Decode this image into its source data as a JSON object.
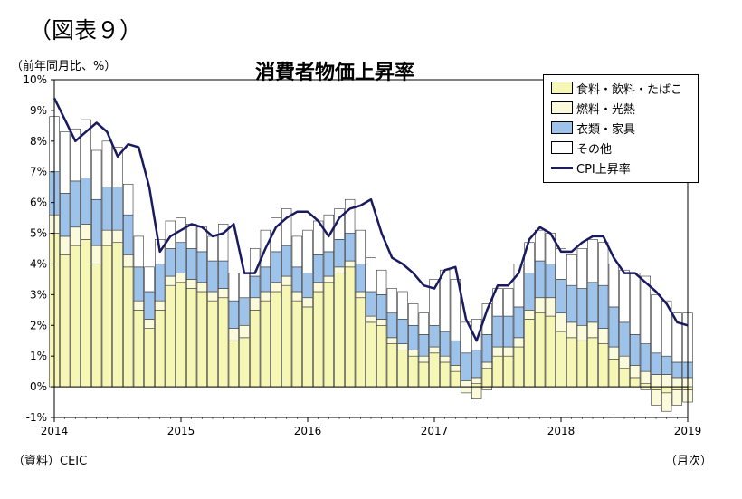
{
  "figure_label": "（図表９）",
  "unit_label": "（前年同月比、%）",
  "source_label": "（資料）CEIC",
  "x_unit_label": "（月次）",
  "colors": {
    "food": "#f7f7b5",
    "fuel": "#fbfbdc",
    "clothing": "#9ec3ea",
    "other": "#ffffff",
    "cpi": "#1a1a60"
  },
  "chart_data": {
    "type": "bar",
    "title": "消費者物価上昇率",
    "ylabel": "（前年同月比、%）",
    "xlabel": "（月次）",
    "ylim": [
      -1,
      10
    ],
    "y_ticks": [
      "10%",
      "9%",
      "8%",
      "7%",
      "6%",
      "5%",
      "4%",
      "3%",
      "2%",
      "1%",
      "0%",
      "-1%"
    ],
    "x_tick_labels": [
      "2014",
      "2015",
      "2016",
      "2017",
      "2018",
      "2019"
    ],
    "categories": [
      "2014-01",
      "2014-02",
      "2014-03",
      "2014-04",
      "2014-05",
      "2014-06",
      "2014-07",
      "2014-08",
      "2014-09",
      "2014-10",
      "2014-11",
      "2014-12",
      "2015-01",
      "2015-02",
      "2015-03",
      "2015-04",
      "2015-05",
      "2015-06",
      "2015-07",
      "2015-08",
      "2015-09",
      "2015-10",
      "2015-11",
      "2015-12",
      "2016-01",
      "2016-02",
      "2016-03",
      "2016-04",
      "2016-05",
      "2016-06",
      "2016-07",
      "2016-08",
      "2016-09",
      "2016-10",
      "2016-11",
      "2016-12",
      "2017-01",
      "2017-02",
      "2017-03",
      "2017-04",
      "2017-05",
      "2017-06",
      "2017-07",
      "2017-08",
      "2017-09",
      "2017-10",
      "2017-11",
      "2017-12",
      "2018-01",
      "2018-02",
      "2018-03",
      "2018-04",
      "2018-05",
      "2018-06",
      "2018-07",
      "2018-08",
      "2018-09",
      "2018-10",
      "2018-11",
      "2018-12",
      "2019-01"
    ],
    "legend_position": "top-right",
    "series": [
      {
        "name": "食料・飲料・たばこ",
        "key": "food",
        "kind": "bar",
        "values": [
          5.0,
          4.3,
          4.6,
          4.8,
          4.0,
          4.6,
          4.7,
          3.9,
          2.5,
          1.9,
          2.5,
          3.3,
          3.4,
          3.2,
          3.1,
          2.8,
          2.9,
          1.5,
          1.6,
          2.5,
          2.8,
          3.1,
          3.3,
          2.8,
          2.6,
          3.1,
          3.4,
          3.7,
          3.9,
          2.9,
          2.1,
          2.0,
          1.4,
          1.2,
          1.0,
          0.8,
          1.1,
          0.8,
          0.5,
          0.0,
          0.1,
          0.6,
          1.0,
          1.0,
          1.3,
          2.2,
          2.4,
          2.3,
          1.8,
          1.6,
          1.5,
          1.6,
          1.4,
          0.9,
          0.6,
          0.3,
          0.1,
          -0.1,
          -0.2,
          -0.1,
          -0.1
        ]
      },
      {
        "name": "燃料・光熱",
        "key": "fuel",
        "kind": "bar",
        "values": [
          0.6,
          0.6,
          0.6,
          0.5,
          0.6,
          0.5,
          0.4,
          0.4,
          0.3,
          0.3,
          0.3,
          0.3,
          0.3,
          0.3,
          0.3,
          0.3,
          0.3,
          0.4,
          0.4,
          0.4,
          0.3,
          0.3,
          0.3,
          0.3,
          0.3,
          0.3,
          0.2,
          0.2,
          0.2,
          0.2,
          0.2,
          0.2,
          0.2,
          0.2,
          0.2,
          0.2,
          0.2,
          0.2,
          0.2,
          0.2,
          0.2,
          0.2,
          0.3,
          0.3,
          0.3,
          0.3,
          0.5,
          0.6,
          0.6,
          0.5,
          0.5,
          0.5,
          0.5,
          0.4,
          0.4,
          0.4,
          0.4,
          0.4,
          0.4,
          0.3,
          0.3
        ],
        "negative_values": [
          0,
          0,
          0,
          0,
          0,
          0,
          0,
          0,
          0,
          0,
          0,
          0,
          0,
          0,
          0,
          0,
          0,
          0,
          0,
          0,
          0,
          0,
          0,
          0,
          0,
          0,
          0,
          0,
          0,
          0,
          0,
          0,
          0,
          0,
          0,
          0,
          0,
          0,
          0,
          -0.2,
          -0.4,
          -0.1,
          0,
          0,
          0,
          0,
          0,
          0,
          0,
          0,
          0,
          0,
          0,
          0,
          0,
          0,
          -0.1,
          -0.5,
          -0.6,
          -0.5,
          -0.4
        ]
      },
      {
        "name": "衣類・家具",
        "key": "clothing",
        "kind": "bar",
        "values": [
          1.4,
          1.4,
          1.5,
          1.5,
          1.5,
          1.4,
          1.4,
          1.3,
          1.1,
          0.9,
          1.2,
          0.9,
          1.0,
          1.0,
          1.0,
          1.0,
          0.9,
          0.9,
          0.9,
          0.7,
          0.8,
          1.0,
          1.0,
          0.8,
          0.8,
          0.9,
          0.8,
          0.9,
          0.9,
          0.9,
          0.8,
          0.8,
          0.8,
          0.8,
          0.8,
          0.7,
          0.7,
          0.8,
          0.8,
          0.9,
          0.9,
          0.9,
          1.0,
          1.0,
          1.0,
          1.2,
          1.2,
          1.1,
          1.1,
          1.2,
          1.2,
          1.3,
          1.4,
          1.3,
          1.1,
          1.0,
          0.9,
          0.7,
          0.6,
          0.5,
          0.5
        ]
      },
      {
        "name": "その他",
        "key": "other",
        "kind": "bar",
        "values": [
          1.8,
          2.0,
          1.7,
          1.9,
          1.6,
          1.5,
          1.3,
          1.0,
          1.0,
          0.8,
          0.8,
          0.9,
          0.8,
          0.8,
          0.8,
          0.8,
          1.2,
          0.9,
          0.8,
          0.9,
          1.2,
          1.1,
          1.2,
          1.0,
          1.4,
          1.1,
          1.2,
          1.0,
          1.1,
          1.1,
          1.1,
          0.8,
          0.8,
          0.9,
          0.7,
          0.7,
          1.5,
          2.0,
          2.0,
          1.0,
          1.0,
          1.0,
          0.9,
          0.9,
          1.4,
          1.0,
          1.0,
          1.0,
          1.0,
          1.0,
          1.3,
          1.4,
          1.4,
          1.4,
          1.7,
          2.0,
          2.2,
          1.9,
          1.8,
          1.6,
          1.6
        ]
      },
      {
        "name": "CPI上昇率",
        "key": "cpi",
        "kind": "line",
        "values": [
          9.4,
          8.7,
          8.0,
          8.3,
          8.6,
          8.3,
          7.5,
          7.9,
          7.8,
          6.5,
          4.4,
          4.9,
          5.1,
          5.3,
          5.2,
          4.9,
          5.0,
          5.3,
          3.7,
          3.7,
          4.5,
          5.2,
          5.5,
          5.7,
          5.7,
          5.4,
          4.9,
          5.5,
          5.8,
          5.9,
          6.1,
          5.0,
          4.2,
          4.0,
          3.7,
          3.3,
          3.2,
          3.8,
          3.9,
          2.2,
          1.5,
          2.5,
          3.3,
          3.3,
          3.7,
          4.8,
          5.2,
          5.0,
          4.4,
          4.4,
          4.7,
          4.9,
          4.9,
          4.2,
          3.7,
          3.7,
          3.4,
          3.1,
          2.7,
          2.1,
          2.0
        ]
      }
    ]
  },
  "legend": [
    {
      "label": "食料・飲料・たばこ",
      "key": "food"
    },
    {
      "label": "燃料・光熱",
      "key": "fuel"
    },
    {
      "label": "衣類・家具",
      "key": "clothing"
    },
    {
      "label": "その他",
      "key": "other"
    },
    {
      "label": "CPI上昇率",
      "key": "cpi"
    }
  ]
}
